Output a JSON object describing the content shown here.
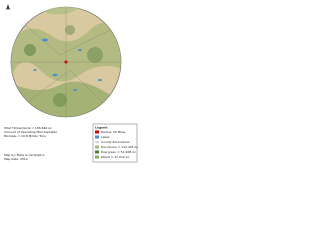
{
  "map": {
    "summary": [
      "Total Timberlands = 186,646 Ac",
      "Amount of Operating Merchantable",
      "Biomass = 10.8 Million Tons"
    ],
    "credit": [
      "Map by: Plate & Cartalytics",
      "Map date: 2014"
    ],
    "legend": {
      "title": "Legend",
      "items": [
        "Radius: 50 Miles",
        "Lakes",
        "County Boundaries",
        "Deciduous = 112,445 Ac",
        "Evergreen = 51,968 Ac",
        "Mixed = 47,010 Ac"
      ]
    }
  }
}
